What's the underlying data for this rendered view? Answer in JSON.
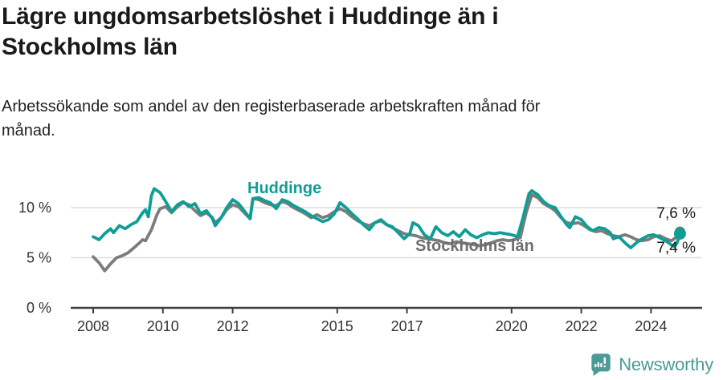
{
  "header": {
    "title": "Lägre ungdomsarbetslöshet i Huddinge än i\nStockholms län",
    "subtitle": "Arbetssökande som andel av den registerbaserade arbetskraften månad för\nmånad."
  },
  "colors": {
    "huddinge_line": "#0f9e96",
    "stockholm_line": "#7c7c7c",
    "grid": "#dcdcdc",
    "axis": "#3f3f3f",
    "brand": "#4b9b97"
  },
  "chart_data": {
    "type": "line",
    "title": "Lägre ungdomsarbetslöshet i Huddinge än i Stockholms län",
    "xlabel": "",
    "ylabel": "Arbetssökande som andel av den registerbaserade arbetskraften (%)",
    "unit": "%",
    "grid": "horizontal",
    "legend_position": "inline-labels",
    "xlim": [
      2007.6,
      2025.3
    ],
    "ylim": [
      0,
      12.7
    ],
    "x_ticks": [
      {
        "year": 2008,
        "label": "2008"
      },
      {
        "year": 2010,
        "label": "2010"
      },
      {
        "year": 2012,
        "label": "2012"
      },
      {
        "year": 2015,
        "label": "2015"
      },
      {
        "year": 2017,
        "label": "2017"
      },
      {
        "year": 2020,
        "label": "2020"
      },
      {
        "year": 2022,
        "label": "2022"
      },
      {
        "year": 2024,
        "label": "2024"
      }
    ],
    "y_ticks": [
      {
        "value": 0,
        "label": "0 %"
      },
      {
        "value": 5,
        "label": "5 %"
      },
      {
        "value": 10,
        "label": "10 %"
      }
    ],
    "series": [
      {
        "name": "Stockholms län",
        "color": "#7c7c7c",
        "end_label": "7,6 %",
        "end_value": 7.6,
        "points": [
          [
            2008.0,
            5.1
          ],
          [
            2008.17,
            4.5
          ],
          [
            2008.33,
            3.7
          ],
          [
            2008.5,
            4.4
          ],
          [
            2008.67,
            5.0
          ],
          [
            2008.83,
            5.2
          ],
          [
            2009.0,
            5.5
          ],
          [
            2009.17,
            6.0
          ],
          [
            2009.33,
            6.5
          ],
          [
            2009.42,
            6.8
          ],
          [
            2009.5,
            6.7
          ],
          [
            2009.67,
            7.8
          ],
          [
            2009.83,
            9.3
          ],
          [
            2009.92,
            9.9
          ],
          [
            2010.08,
            10.1
          ],
          [
            2010.25,
            9.5
          ],
          [
            2010.42,
            10.1
          ],
          [
            2010.58,
            10.5
          ],
          [
            2010.75,
            10.3
          ],
          [
            2010.92,
            9.7
          ],
          [
            2011.08,
            9.2
          ],
          [
            2011.25,
            9.5
          ],
          [
            2011.42,
            9.0
          ],
          [
            2011.5,
            8.5
          ],
          [
            2011.67,
            9.0
          ],
          [
            2011.83,
            9.8
          ],
          [
            2012.0,
            10.3
          ],
          [
            2012.17,
            10.1
          ],
          [
            2012.33,
            9.5
          ],
          [
            2012.5,
            8.9
          ],
          [
            2012.58,
            10.9
          ],
          [
            2012.75,
            10.8
          ],
          [
            2012.92,
            10.5
          ],
          [
            2013.08,
            10.3
          ],
          [
            2013.25,
            10.2
          ],
          [
            2013.42,
            10.6
          ],
          [
            2013.58,
            10.4
          ],
          [
            2013.75,
            10.0
          ],
          [
            2013.92,
            9.7
          ],
          [
            2014.08,
            9.4
          ],
          [
            2014.25,
            9.0
          ],
          [
            2014.42,
            9.3
          ],
          [
            2014.58,
            9.0
          ],
          [
            2014.75,
            9.2
          ],
          [
            2014.92,
            9.6
          ],
          [
            2015.08,
            9.9
          ],
          [
            2015.25,
            9.6
          ],
          [
            2015.42,
            9.1
          ],
          [
            2015.58,
            8.7
          ],
          [
            2015.75,
            8.4
          ],
          [
            2015.92,
            8.2
          ],
          [
            2016.08,
            8.5
          ],
          [
            2016.25,
            8.7
          ],
          [
            2016.42,
            8.3
          ],
          [
            2016.58,
            8.0
          ],
          [
            2016.75,
            7.7
          ],
          [
            2016.92,
            7.4
          ],
          [
            2017.08,
            7.3
          ],
          [
            2017.25,
            7.2
          ],
          [
            2017.42,
            7.0
          ],
          [
            2017.58,
            6.9
          ],
          [
            2017.75,
            6.8
          ],
          [
            2017.92,
            6.7
          ],
          [
            2018.08,
            6.5
          ],
          [
            2018.25,
            6.4
          ],
          [
            2018.42,
            6.6
          ],
          [
            2018.58,
            6.5
          ],
          [
            2018.75,
            6.4
          ],
          [
            2018.92,
            6.3
          ],
          [
            2019.08,
            6.2
          ],
          [
            2019.25,
            6.3
          ],
          [
            2019.42,
            6.5
          ],
          [
            2019.58,
            6.7
          ],
          [
            2019.75,
            6.8
          ],
          [
            2019.92,
            6.7
          ],
          [
            2020.08,
            6.8
          ],
          [
            2020.25,
            7.0
          ],
          [
            2020.42,
            9.5
          ],
          [
            2020.58,
            11.3
          ],
          [
            2020.75,
            11.0
          ],
          [
            2020.92,
            10.4
          ],
          [
            2021.08,
            10.1
          ],
          [
            2021.25,
            9.7
          ],
          [
            2021.42,
            9.0
          ],
          [
            2021.58,
            8.5
          ],
          [
            2021.75,
            8.4
          ],
          [
            2021.92,
            8.5
          ],
          [
            2022.08,
            8.2
          ],
          [
            2022.25,
            7.8
          ],
          [
            2022.42,
            7.6
          ],
          [
            2022.58,
            7.7
          ],
          [
            2022.75,
            7.4
          ],
          [
            2022.92,
            7.2
          ],
          [
            2023.08,
            7.1
          ],
          [
            2023.25,
            7.3
          ],
          [
            2023.42,
            7.1
          ],
          [
            2023.58,
            6.8
          ],
          [
            2023.75,
            6.7
          ],
          [
            2023.92,
            6.8
          ],
          [
            2024.08,
            7.1
          ],
          [
            2024.25,
            7.2
          ],
          [
            2024.42,
            6.9
          ],
          [
            2024.58,
            6.7
          ],
          [
            2024.75,
            7.1
          ],
          [
            2024.83,
            7.6
          ]
        ]
      },
      {
        "name": "Huddinge",
        "color": "#0f9e96",
        "end_label": "7,4 %",
        "end_value": 7.4,
        "points": [
          [
            2008.0,
            7.1
          ],
          [
            2008.17,
            6.8
          ],
          [
            2008.33,
            7.4
          ],
          [
            2008.5,
            7.9
          ],
          [
            2008.58,
            7.5
          ],
          [
            2008.75,
            8.2
          ],
          [
            2008.92,
            7.9
          ],
          [
            2009.08,
            8.3
          ],
          [
            2009.25,
            8.6
          ],
          [
            2009.42,
            9.5
          ],
          [
            2009.5,
            9.8
          ],
          [
            2009.58,
            9.1
          ],
          [
            2009.67,
            11.2
          ],
          [
            2009.75,
            11.9
          ],
          [
            2009.92,
            11.5
          ],
          [
            2010.08,
            10.6
          ],
          [
            2010.25,
            9.6
          ],
          [
            2010.42,
            10.3
          ],
          [
            2010.58,
            10.6
          ],
          [
            2010.75,
            10.1
          ],
          [
            2010.92,
            10.4
          ],
          [
            2011.08,
            9.4
          ],
          [
            2011.25,
            9.7
          ],
          [
            2011.42,
            8.9
          ],
          [
            2011.5,
            8.2
          ],
          [
            2011.67,
            9.0
          ],
          [
            2011.83,
            10.0
          ],
          [
            2012.0,
            10.8
          ],
          [
            2012.17,
            10.4
          ],
          [
            2012.33,
            9.7
          ],
          [
            2012.5,
            8.9
          ],
          [
            2012.58,
            10.9
          ],
          [
            2012.75,
            11.0
          ],
          [
            2012.92,
            10.7
          ],
          [
            2013.08,
            10.5
          ],
          [
            2013.25,
            9.9
          ],
          [
            2013.42,
            10.8
          ],
          [
            2013.58,
            10.6
          ],
          [
            2013.75,
            10.2
          ],
          [
            2013.92,
            9.9
          ],
          [
            2014.08,
            9.6
          ],
          [
            2014.25,
            9.2
          ],
          [
            2014.42,
            8.9
          ],
          [
            2014.58,
            8.6
          ],
          [
            2014.75,
            8.8
          ],
          [
            2014.92,
            9.4
          ],
          [
            2015.08,
            10.5
          ],
          [
            2015.25,
            10.0
          ],
          [
            2015.42,
            9.4
          ],
          [
            2015.58,
            8.9
          ],
          [
            2015.75,
            8.3
          ],
          [
            2015.92,
            7.8
          ],
          [
            2016.08,
            8.5
          ],
          [
            2016.25,
            8.8
          ],
          [
            2016.42,
            8.3
          ],
          [
            2016.58,
            8.1
          ],
          [
            2016.75,
            7.5
          ],
          [
            2016.92,
            6.9
          ],
          [
            2017.08,
            7.4
          ],
          [
            2017.17,
            8.5
          ],
          [
            2017.33,
            8.2
          ],
          [
            2017.5,
            7.3
          ],
          [
            2017.67,
            6.9
          ],
          [
            2017.83,
            8.1
          ],
          [
            2018.0,
            7.5
          ],
          [
            2018.17,
            7.2
          ],
          [
            2018.33,
            7.6
          ],
          [
            2018.5,
            7.1
          ],
          [
            2018.67,
            7.8
          ],
          [
            2018.83,
            7.3
          ],
          [
            2019.0,
            7.0
          ],
          [
            2019.17,
            7.3
          ],
          [
            2019.33,
            7.5
          ],
          [
            2019.5,
            7.4
          ],
          [
            2019.67,
            7.5
          ],
          [
            2019.83,
            7.4
          ],
          [
            2020.0,
            7.3
          ],
          [
            2020.17,
            7.1
          ],
          [
            2020.33,
            9.0
          ],
          [
            2020.5,
            11.4
          ],
          [
            2020.58,
            11.7
          ],
          [
            2020.75,
            11.3
          ],
          [
            2020.92,
            10.6
          ],
          [
            2021.08,
            10.2
          ],
          [
            2021.25,
            10.0
          ],
          [
            2021.42,
            9.1
          ],
          [
            2021.58,
            8.3
          ],
          [
            2021.67,
            8.0
          ],
          [
            2021.83,
            9.1
          ],
          [
            2022.0,
            8.8
          ],
          [
            2022.17,
            8.1
          ],
          [
            2022.33,
            7.7
          ],
          [
            2022.5,
            8.0
          ],
          [
            2022.67,
            7.9
          ],
          [
            2022.83,
            7.5
          ],
          [
            2022.92,
            6.9
          ],
          [
            2023.08,
            7.1
          ],
          [
            2023.25,
            6.5
          ],
          [
            2023.42,
            6.0
          ],
          [
            2023.58,
            6.5
          ],
          [
            2023.75,
            6.9
          ],
          [
            2023.92,
            7.2
          ],
          [
            2024.08,
            7.3
          ],
          [
            2024.25,
            7.0
          ],
          [
            2024.42,
            6.7
          ],
          [
            2024.58,
            6.3
          ],
          [
            2024.67,
            6.1
          ],
          [
            2024.75,
            6.5
          ],
          [
            2024.83,
            7.4
          ]
        ]
      }
    ]
  },
  "footer": {
    "brand": "Newsworthy"
  }
}
